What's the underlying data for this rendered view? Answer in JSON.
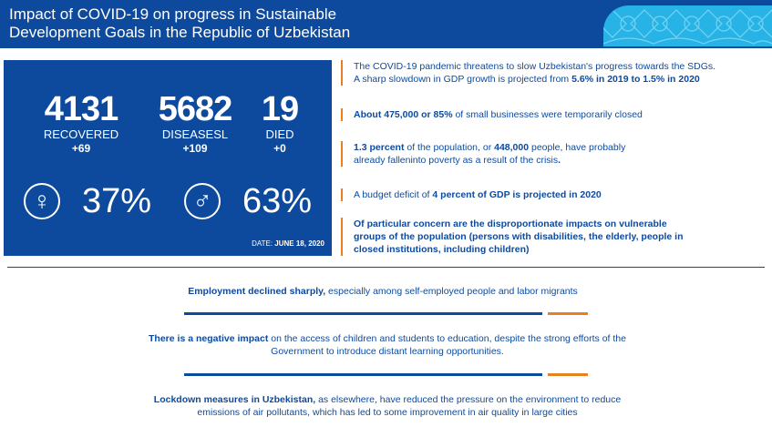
{
  "header": {
    "title_line1": "Impact of COVID-19 on progress in Sustainable",
    "title_line2": "Development Goals in the Republic of Uzbekistan"
  },
  "stats": {
    "recovered": {
      "value": "4131",
      "label": "RECOVERED",
      "delta": "+69"
    },
    "diseases": {
      "value": "5682",
      "label": "DISEASESL",
      "delta": "+109"
    },
    "died": {
      "value": "19",
      "label": "DIED",
      "delta": "+0"
    },
    "female_percent": "37%",
    "male_percent": "63%",
    "date_label": "DATE:",
    "date_value": "JUNE 18, 2020"
  },
  "facts": [
    {
      "pre": "The COVID-19 pandemic threatens to slow Uzbekistan's progress towards the SDGs.",
      "mid": " A sharp slowdown in GDP growth is projected from ",
      "bold": "5.6% in 2019 to 1.5% in 2020",
      "post": ""
    },
    {
      "bold": "About 475,000 or 85%",
      "post": " of small businesses were temporarily closed"
    },
    {
      "bold1": "1.3 percent",
      "t1": " of the population, or ",
      "bold2": "448,000",
      "t2": " people, have probably",
      "t3": "already falleninto poverty as a result of the crisis",
      "t4": "."
    },
    {
      "pre": "A budget deficit of ",
      "bold": "4 percent of GDP is projected in 2020"
    },
    {
      "bold": "Of particular concern are the disproportionate impacts on vulnerable groups of the population (persons with disabilities, the elderly, people in closed institutions, including children)"
    }
  ],
  "impacts": [
    {
      "bold": "Employment declined sharply,",
      "text": " especially among self-employed people and labor migrants"
    },
    {
      "bold": "There is a negative impact",
      "text": " on the access of children and students to education, despite the strong efforts of the Government to introduce distant learning opportunities."
    },
    {
      "bold": "Lockdown measures in Uzbekistan,",
      "text": " as elsewhere, have reduced the pressure on the environment to reduce emissions of air pollutants, which has led to some improvement in air quality in large cities"
    }
  ],
  "colors": {
    "brand_blue": "#0d4a9e",
    "accent_orange": "#e8801f",
    "pattern_cyan": "#27b3e6"
  },
  "icons": {
    "female": "female-symbol-icon",
    "male": "male-symbol-icon"
  }
}
